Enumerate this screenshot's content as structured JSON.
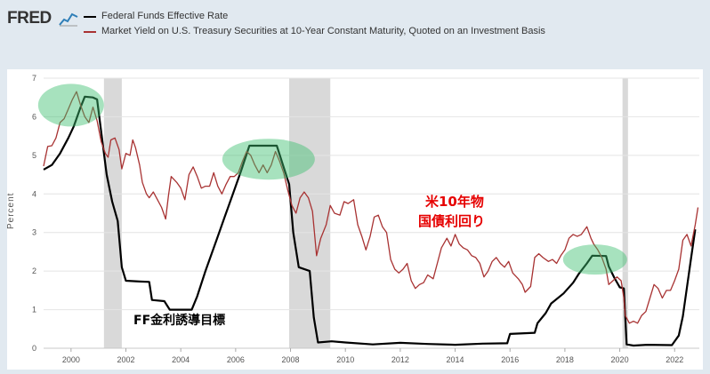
{
  "header": {
    "logo_text": "FRED",
    "logo_icon": "chart-line-icon"
  },
  "colors": {
    "ffr": "#000000",
    "treasury10y": "#a83232",
    "recession": "#d9d9d9",
    "highlight": "#3cbf6e",
    "annotation_red": "#e60000",
    "annotation_black": "#000000"
  },
  "annotations": {
    "ffr_label": "FF金利誘導目標",
    "treasury_label_line1": "米10年物",
    "treasury_label_line2": "国債利回り"
  },
  "chart_data": {
    "type": "line",
    "title": "",
    "ylabel": "Percent",
    "xlabel": "",
    "xlim": [
      1999.0,
      2022.9
    ],
    "ylim": [
      0,
      7
    ],
    "x_ticks": [
      "2000",
      "2002",
      "2004",
      "2006",
      "2008",
      "2010",
      "2012",
      "2014",
      "2016",
      "2018",
      "2020",
      "2022"
    ],
    "y_ticks": [
      "0",
      "1",
      "2",
      "3",
      "4",
      "5",
      "6",
      "7"
    ],
    "grid": "horizontal",
    "legend": "top-left",
    "recessions": [
      [
        2001.2,
        2001.85
      ],
      [
        2007.95,
        2009.45
      ],
      [
        2020.1,
        2020.3
      ]
    ],
    "highlights": [
      {
        "x": 2000.0,
        "y": 6.3
      },
      {
        "x": 2007.2,
        "y": 4.9
      },
      {
        "x": 2019.1,
        "y": 2.3
      }
    ],
    "series": [
      {
        "name": "Federal Funds Effective Rate",
        "color": "#000000",
        "points": [
          [
            1999.0,
            4.63
          ],
          [
            1999.3,
            4.75
          ],
          [
            1999.6,
            5.05
          ],
          [
            1999.9,
            5.45
          ],
          [
            2000.1,
            5.75
          ],
          [
            2000.35,
            6.25
          ],
          [
            2000.5,
            6.52
          ],
          [
            2000.8,
            6.5
          ],
          [
            2000.95,
            6.45
          ],
          [
            2001.1,
            5.6
          ],
          [
            2001.3,
            4.5
          ],
          [
            2001.5,
            3.8
          ],
          [
            2001.7,
            3.3
          ],
          [
            2001.85,
            2.1
          ],
          [
            2002.0,
            1.75
          ],
          [
            2002.5,
            1.73
          ],
          [
            2002.85,
            1.72
          ],
          [
            2002.95,
            1.25
          ],
          [
            2003.4,
            1.22
          ],
          [
            2003.6,
            1.0
          ],
          [
            2004.4,
            1.0
          ],
          [
            2004.6,
            1.35
          ],
          [
            2004.9,
            2.0
          ],
          [
            2005.3,
            2.8
          ],
          [
            2005.6,
            3.4
          ],
          [
            2005.9,
            4.0
          ],
          [
            2006.2,
            4.6
          ],
          [
            2006.5,
            5.25
          ],
          [
            2007.5,
            5.25
          ],
          [
            2007.7,
            4.8
          ],
          [
            2007.95,
            4.25
          ],
          [
            2008.1,
            3.0
          ],
          [
            2008.3,
            2.1
          ],
          [
            2008.7,
            2.0
          ],
          [
            2008.85,
            0.8
          ],
          [
            2009.0,
            0.15
          ],
          [
            2009.5,
            0.18
          ],
          [
            2010.0,
            0.15
          ],
          [
            2011.0,
            0.1
          ],
          [
            2012.0,
            0.14
          ],
          [
            2013.0,
            0.11
          ],
          [
            2014.0,
            0.09
          ],
          [
            2015.0,
            0.12
          ],
          [
            2015.9,
            0.13
          ],
          [
            2016.0,
            0.37
          ],
          [
            2016.9,
            0.4
          ],
          [
            2017.0,
            0.65
          ],
          [
            2017.3,
            0.91
          ],
          [
            2017.5,
            1.16
          ],
          [
            2017.95,
            1.42
          ],
          [
            2018.3,
            1.7
          ],
          [
            2018.5,
            1.92
          ],
          [
            2018.8,
            2.2
          ],
          [
            2019.0,
            2.4
          ],
          [
            2019.5,
            2.39
          ],
          [
            2019.6,
            2.12
          ],
          [
            2019.8,
            1.83
          ],
          [
            2020.0,
            1.58
          ],
          [
            2020.15,
            1.55
          ],
          [
            2020.25,
            0.1
          ],
          [
            2020.5,
            0.07
          ],
          [
            2021.0,
            0.09
          ],
          [
            2021.9,
            0.08
          ],
          [
            2022.15,
            0.33
          ],
          [
            2022.3,
            0.83
          ],
          [
            2022.45,
            1.58
          ],
          [
            2022.6,
            2.33
          ],
          [
            2022.75,
            3.08
          ]
        ]
      },
      {
        "name": "Market Yield on U.S. Treasury Securities at 10-Year Constant Maturity, Quoted on an Investment Basis",
        "color": "#a83232",
        "points": [
          [
            1999.0,
            4.72
          ],
          [
            1999.15,
            5.23
          ],
          [
            1999.3,
            5.25
          ],
          [
            1999.45,
            5.45
          ],
          [
            1999.6,
            5.85
          ],
          [
            1999.75,
            5.95
          ],
          [
            1999.9,
            6.2
          ],
          [
            2000.05,
            6.45
          ],
          [
            2000.2,
            6.65
          ],
          [
            2000.35,
            6.3
          ],
          [
            2000.5,
            6.0
          ],
          [
            2000.65,
            5.85
          ],
          [
            2000.8,
            6.25
          ],
          [
            2000.95,
            5.9
          ],
          [
            2001.1,
            5.35
          ],
          [
            2001.25,
            5.05
          ],
          [
            2001.35,
            4.95
          ],
          [
            2001.45,
            5.4
          ],
          [
            2001.6,
            5.45
          ],
          [
            2001.75,
            5.15
          ],
          [
            2001.85,
            4.65
          ],
          [
            2002.0,
            5.05
          ],
          [
            2002.15,
            5.0
          ],
          [
            2002.25,
            5.4
          ],
          [
            2002.35,
            5.2
          ],
          [
            2002.5,
            4.75
          ],
          [
            2002.6,
            4.3
          ],
          [
            2002.75,
            4.0
          ],
          [
            2002.85,
            3.9
          ],
          [
            2003.0,
            4.05
          ],
          [
            2003.15,
            3.85
          ],
          [
            2003.3,
            3.65
          ],
          [
            2003.45,
            3.35
          ],
          [
            2003.55,
            3.95
          ],
          [
            2003.65,
            4.45
          ],
          [
            2003.85,
            4.3
          ],
          [
            2004.0,
            4.15
          ],
          [
            2004.15,
            3.85
          ],
          [
            2004.3,
            4.5
          ],
          [
            2004.45,
            4.7
          ],
          [
            2004.6,
            4.45
          ],
          [
            2004.75,
            4.15
          ],
          [
            2004.9,
            4.2
          ],
          [
            2005.05,
            4.2
          ],
          [
            2005.2,
            4.55
          ],
          [
            2005.35,
            4.2
          ],
          [
            2005.5,
            4.0
          ],
          [
            2005.65,
            4.25
          ],
          [
            2005.8,
            4.45
          ],
          [
            2005.95,
            4.45
          ],
          [
            2006.1,
            4.55
          ],
          [
            2006.25,
            4.85
          ],
          [
            2006.4,
            5.1
          ],
          [
            2006.55,
            5.0
          ],
          [
            2006.7,
            4.75
          ],
          [
            2006.85,
            4.55
          ],
          [
            2007.0,
            4.75
          ],
          [
            2007.15,
            4.55
          ],
          [
            2007.3,
            4.75
          ],
          [
            2007.45,
            5.1
          ],
          [
            2007.6,
            4.85
          ],
          [
            2007.75,
            4.55
          ],
          [
            2007.9,
            4.1
          ],
          [
            2008.05,
            3.7
          ],
          [
            2008.2,
            3.5
          ],
          [
            2008.35,
            3.9
          ],
          [
            2008.5,
            4.05
          ],
          [
            2008.65,
            3.9
          ],
          [
            2008.8,
            3.55
          ],
          [
            2008.95,
            2.4
          ],
          [
            2009.1,
            2.85
          ],
          [
            2009.3,
            3.2
          ],
          [
            2009.45,
            3.7
          ],
          [
            2009.6,
            3.5
          ],
          [
            2009.8,
            3.45
          ],
          [
            2009.95,
            3.8
          ],
          [
            2010.1,
            3.75
          ],
          [
            2010.3,
            3.85
          ],
          [
            2010.45,
            3.2
          ],
          [
            2010.6,
            2.9
          ],
          [
            2010.75,
            2.55
          ],
          [
            2010.9,
            2.9
          ],
          [
            2011.05,
            3.4
          ],
          [
            2011.2,
            3.45
          ],
          [
            2011.35,
            3.15
          ],
          [
            2011.5,
            3.0
          ],
          [
            2011.65,
            2.3
          ],
          [
            2011.8,
            2.05
          ],
          [
            2011.95,
            1.95
          ],
          [
            2012.1,
            2.05
          ],
          [
            2012.25,
            2.2
          ],
          [
            2012.4,
            1.75
          ],
          [
            2012.55,
            1.55
          ],
          [
            2012.7,
            1.65
          ],
          [
            2012.85,
            1.7
          ],
          [
            2013.0,
            1.9
          ],
          [
            2013.2,
            1.8
          ],
          [
            2013.35,
            2.2
          ],
          [
            2013.5,
            2.6
          ],
          [
            2013.7,
            2.85
          ],
          [
            2013.85,
            2.65
          ],
          [
            2014.0,
            2.95
          ],
          [
            2014.15,
            2.7
          ],
          [
            2014.3,
            2.6
          ],
          [
            2014.45,
            2.55
          ],
          [
            2014.6,
            2.4
          ],
          [
            2014.75,
            2.35
          ],
          [
            2014.9,
            2.2
          ],
          [
            2015.05,
            1.85
          ],
          [
            2015.2,
            2.0
          ],
          [
            2015.35,
            2.25
          ],
          [
            2015.5,
            2.35
          ],
          [
            2015.65,
            2.2
          ],
          [
            2015.8,
            2.1
          ],
          [
            2015.95,
            2.25
          ],
          [
            2016.1,
            1.95
          ],
          [
            2016.3,
            1.8
          ],
          [
            2016.45,
            1.65
          ],
          [
            2016.55,
            1.45
          ],
          [
            2016.75,
            1.6
          ],
          [
            2016.9,
            2.35
          ],
          [
            2017.05,
            2.45
          ],
          [
            2017.2,
            2.35
          ],
          [
            2017.4,
            2.25
          ],
          [
            2017.55,
            2.3
          ],
          [
            2017.7,
            2.2
          ],
          [
            2017.85,
            2.4
          ],
          [
            2018.0,
            2.55
          ],
          [
            2018.15,
            2.85
          ],
          [
            2018.3,
            2.95
          ],
          [
            2018.45,
            2.9
          ],
          [
            2018.6,
            2.95
          ],
          [
            2018.8,
            3.15
          ],
          [
            2018.95,
            2.85
          ],
          [
            2019.05,
            2.7
          ],
          [
            2019.2,
            2.55
          ],
          [
            2019.35,
            2.35
          ],
          [
            2019.5,
            2.05
          ],
          [
            2019.6,
            1.65
          ],
          [
            2019.75,
            1.75
          ],
          [
            2019.9,
            1.85
          ],
          [
            2020.05,
            1.75
          ],
          [
            2020.15,
            1.3
          ],
          [
            2020.2,
            0.85
          ],
          [
            2020.35,
            0.65
          ],
          [
            2020.5,
            0.7
          ],
          [
            2020.65,
            0.65
          ],
          [
            2020.8,
            0.85
          ],
          [
            2020.95,
            0.95
          ],
          [
            2021.1,
            1.3
          ],
          [
            2021.25,
            1.65
          ],
          [
            2021.4,
            1.55
          ],
          [
            2021.55,
            1.3
          ],
          [
            2021.7,
            1.5
          ],
          [
            2021.85,
            1.5
          ],
          [
            2022.0,
            1.75
          ],
          [
            2022.15,
            2.05
          ],
          [
            2022.3,
            2.8
          ],
          [
            2022.45,
            2.95
          ],
          [
            2022.6,
            2.65
          ],
          [
            2022.75,
            3.2
          ],
          [
            2022.85,
            3.65
          ]
        ]
      }
    ]
  }
}
